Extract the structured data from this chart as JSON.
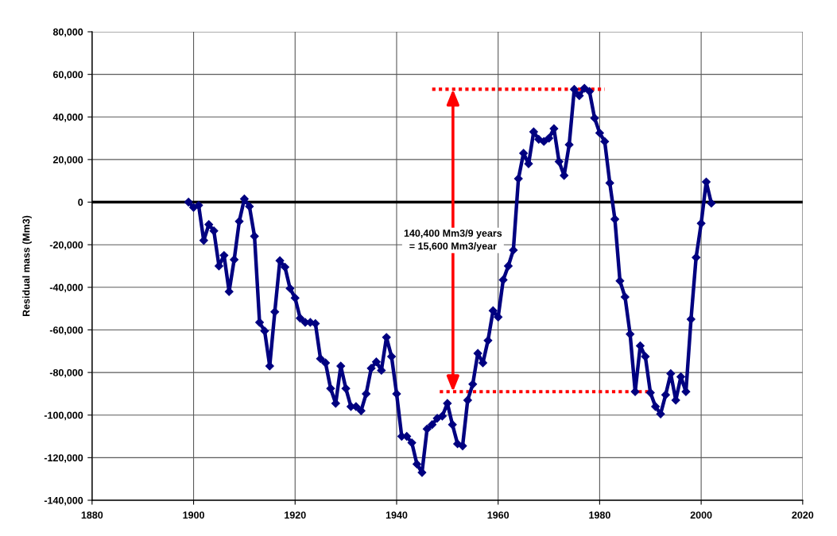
{
  "chart_data": {
    "type": "line",
    "ylabel": "Residual mass (Mm3)",
    "xlim": [
      1880,
      2020
    ],
    "xticks": [
      1880,
      1900,
      1920,
      1940,
      1960,
      1980,
      2000,
      2020
    ],
    "ylim": [
      -140000,
      80000
    ],
    "yticks": [
      {
        "value": -140000,
        "label": "-140,000"
      },
      {
        "value": -120000,
        "label": "-120,000"
      },
      {
        "value": -100000,
        "label": "-100,000"
      },
      {
        "value": -80000,
        "label": "-80,000"
      },
      {
        "value": -60000,
        "label": "-60,000"
      },
      {
        "value": -40000,
        "label": "-40,000"
      },
      {
        "value": -20000,
        "label": "-20,000"
      },
      {
        "value": 0,
        "label": "0"
      },
      {
        "value": 20000,
        "label": "20,000"
      },
      {
        "value": 40000,
        "label": "40,000"
      },
      {
        "value": 60000,
        "label": "60,000"
      },
      {
        "value": 80000,
        "label": "80,000"
      }
    ],
    "grid": true,
    "marker": "diamond",
    "line_style": "solid",
    "ref_lines": [
      {
        "axis": "y",
        "value": 0,
        "color": "#000000"
      }
    ],
    "series": [
      {
        "color": "#000080",
        "x": [
          1899,
          1900,
          1901,
          1902,
          1903,
          1904,
          1905,
          1906,
          1907,
          1908,
          1909,
          1910,
          1911,
          1912,
          1913,
          1914,
          1915,
          1916,
          1917,
          1918,
          1919,
          1920,
          1921,
          1922,
          1923,
          1924,
          1925,
          1926,
          1927,
          1928,
          1929,
          1930,
          1931,
          1932,
          1933,
          1934,
          1935,
          1936,
          1937,
          1938,
          1939,
          1940,
          1941,
          1942,
          1943,
          1944,
          1945,
          1946,
          1947,
          1948,
          1949,
          1950,
          1951,
          1952,
          1953,
          1954,
          1955,
          1956,
          1957,
          1958,
          1959,
          1960,
          1961,
          1962,
          1963,
          1964,
          1965,
          1966,
          1967,
          1968,
          1969,
          1970,
          1971,
          1972,
          1973,
          1974,
          1975,
          1976,
          1977,
          1978,
          1979,
          1980,
          1981,
          1982,
          1983,
          1984,
          1985,
          1986,
          1987,
          1988,
          1989,
          1990,
          1991,
          1992,
          1993,
          1994,
          1995,
          1996,
          1997,
          1998,
          1999,
          2000,
          2001,
          2002
        ],
        "values": [
          0,
          -2500,
          -1500,
          -18000,
          -10500,
          -13500,
          -30000,
          -25000,
          -42000,
          -27000,
          -9000,
          1500,
          -2000,
          -16000,
          -56500,
          -60500,
          -77000,
          -51500,
          -27500,
          -30500,
          -40500,
          -45000,
          -54500,
          -56500,
          -56500,
          -57000,
          -73500,
          -75500,
          -87500,
          -94500,
          -77000,
          -87500,
          -96000,
          -96000,
          -98000,
          -90000,
          -78000,
          -75000,
          -79000,
          -63500,
          -72500,
          -90000,
          -110000,
          -110000,
          -113000,
          -123000,
          -127000,
          -106500,
          -104500,
          -101500,
          -100500,
          -94500,
          -104500,
          -113500,
          -114500,
          -93000,
          -85500,
          -71000,
          -75500,
          -65000,
          -51000,
          -54000,
          -36500,
          -30000,
          -22500,
          11000,
          23000,
          18000,
          33000,
          29500,
          28500,
          30000,
          34500,
          19000,
          12500,
          27000,
          53000,
          50000,
          53500,
          52000,
          39500,
          32500,
          28500,
          9000,
          -8000,
          -37000,
          -44500,
          -62000,
          -89000,
          -67500,
          -72500,
          -89500,
          -96000,
          -99500,
          -90500,
          -80500,
          -93000,
          -82000,
          -89000,
          -55000,
          -26000,
          -10000,
          9500,
          -500
        ]
      },
      {
        "color": "#ff0000",
        "line_style": "dotted",
        "marker": "none",
        "x": [
          1947,
          1981
        ],
        "values": [
          53000,
          53000
        ]
      },
      {
        "color": "#ff0000",
        "line_style": "dotted",
        "marker": "none",
        "x": [
          1948.5,
          1990
        ],
        "values": [
          -89000,
          -89000
        ]
      }
    ],
    "annotations": [
      "140,400 Mm3/9 years\n= 15,600 Mm3/year"
    ]
  }
}
